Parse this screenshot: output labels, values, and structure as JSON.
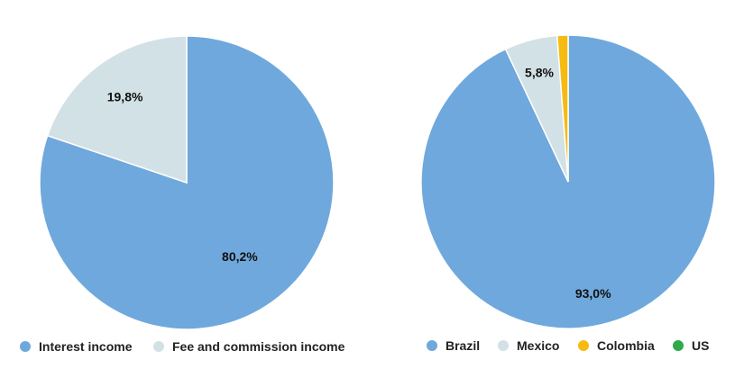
{
  "chart_data": [
    {
      "type": "pie",
      "title": "",
      "categories": [
        "Interest income",
        "Fee and commission income"
      ],
      "values": [
        80.2,
        19.8
      ],
      "colors": [
        "#6fa8dc",
        "#d2e1e5"
      ],
      "data_labels": [
        "80,2%",
        "19,8%"
      ],
      "legend_labels": [
        "Interest income",
        "Fee and commission income"
      ],
      "legend_position": "bottom",
      "start_at": "top",
      "direction": "clockwise"
    },
    {
      "type": "pie",
      "title": "",
      "categories": [
        "Brazil",
        "Mexico",
        "Colombia",
        "US"
      ],
      "values": [
        93.0,
        5.8,
        1.2,
        0.0
      ],
      "colors": [
        "#6fa8dc",
        "#d2e1e5",
        "#f6bb12",
        "#2eaa4a"
      ],
      "data_labels": [
        "93,0%",
        "5,8%",
        "",
        ""
      ],
      "legend_labels": [
        "Brazil",
        "Mexico",
        "Colombia",
        "US"
      ],
      "legend_position": "bottom",
      "start_at": "top",
      "direction": "clockwise"
    }
  ]
}
